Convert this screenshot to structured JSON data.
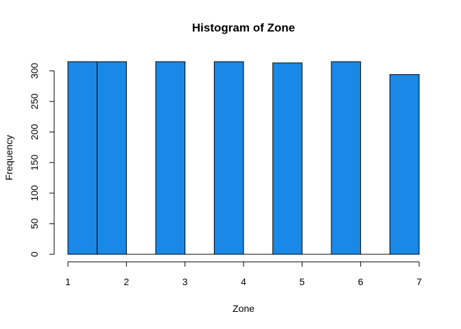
{
  "chart_data": {
    "type": "bar",
    "title": "Histogram of Zone",
    "xlabel": "Zone",
    "ylabel": "Frequency",
    "bins": [
      {
        "x0": 1.0,
        "x1": 1.5,
        "count": 315
      },
      {
        "x0": 1.5,
        "x1": 2.0,
        "count": 315
      },
      {
        "x0": 2.0,
        "x1": 2.5,
        "count": 0
      },
      {
        "x0": 2.5,
        "x1": 3.0,
        "count": 315
      },
      {
        "x0": 3.0,
        "x1": 3.5,
        "count": 0
      },
      {
        "x0": 3.5,
        "x1": 4.0,
        "count": 315
      },
      {
        "x0": 4.0,
        "x1": 4.5,
        "count": 0
      },
      {
        "x0": 4.5,
        "x1": 5.0,
        "count": 313
      },
      {
        "x0": 5.0,
        "x1": 5.5,
        "count": 0
      },
      {
        "x0": 5.5,
        "x1": 6.0,
        "count": 315
      },
      {
        "x0": 6.0,
        "x1": 6.5,
        "count": 0
      },
      {
        "x0": 6.5,
        "x1": 7.0,
        "count": 294
      }
    ],
    "xlim": [
      1,
      7
    ],
    "ylim": [
      0,
      315
    ],
    "xticks": [
      "1",
      "2",
      "3",
      "4",
      "5",
      "6",
      "7"
    ],
    "yticks": [
      "0",
      "50",
      "100",
      "150",
      "200",
      "250",
      "300"
    ],
    "grid": false,
    "colors": {
      "bar_fill": "#1a88e6",
      "bar_stroke": "#000000"
    }
  }
}
